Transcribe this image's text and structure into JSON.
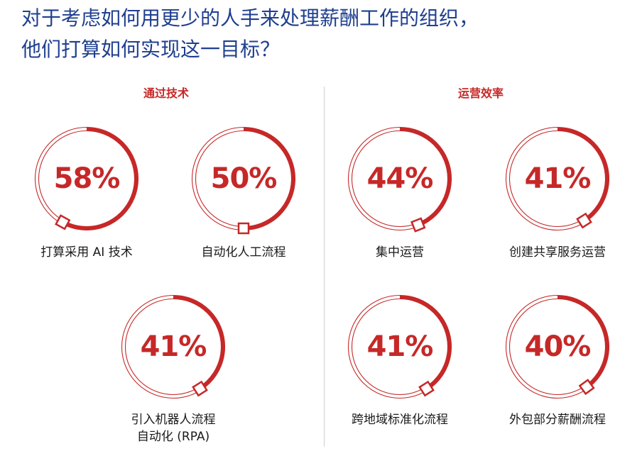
{
  "title": {
    "line1": "对于考虑如何用更少的人手来处理薪酬工作的组织，",
    "line2": "他们打算如何实现这一目标？"
  },
  "colors": {
    "accent": "#c62828",
    "title": "#1f3f8f",
    "track": "#c62828"
  },
  "chart_data": {
    "type": "radial-progress",
    "groups": [
      {
        "label": "通过技术",
        "items": [
          {
            "value": 58,
            "display": "58%",
            "label_lines": [
              "打算采用 AI 技术"
            ]
          },
          {
            "value": 50,
            "display": "50%",
            "label_lines": [
              "自动化人工流程"
            ]
          },
          {
            "value": 41,
            "display": "41%",
            "label_lines": [
              "引入机器人流程",
              "自动化 (RPA)"
            ]
          }
        ]
      },
      {
        "label": "运营效率",
        "items": [
          {
            "value": 44,
            "display": "44%",
            "label_lines": [
              "集中运营"
            ]
          },
          {
            "value": 41,
            "display": "41%",
            "label_lines": [
              "创建共享服务运营"
            ]
          },
          {
            "value": 41,
            "display": "41%",
            "label_lines": [
              "跨地域标准化流程"
            ]
          },
          {
            "value": 40,
            "display": "40%",
            "label_lines": [
              "外包部分薪酬流程"
            ]
          }
        ]
      }
    ]
  }
}
